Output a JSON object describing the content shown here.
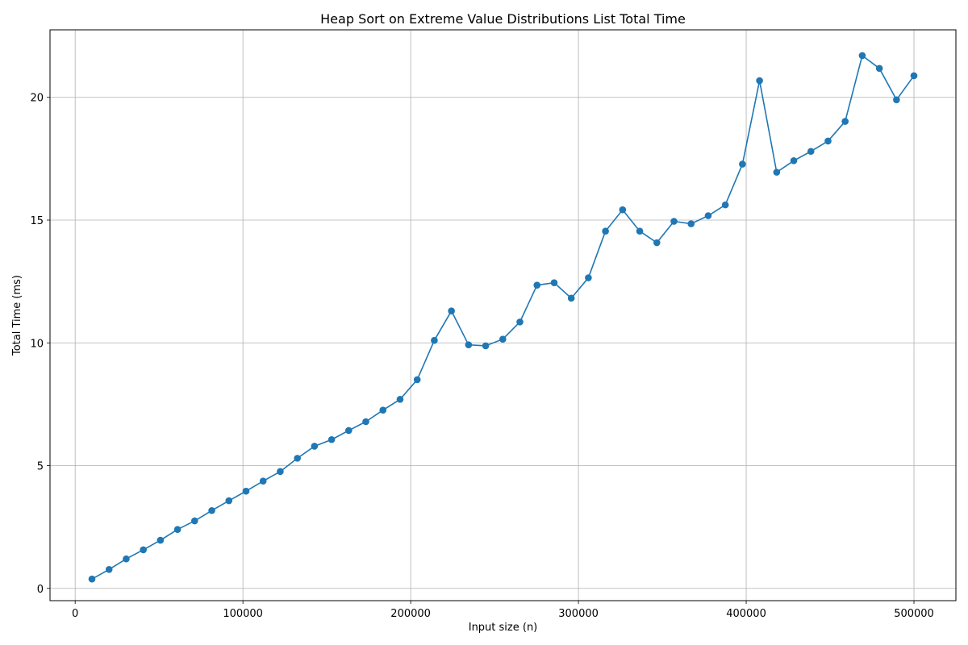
{
  "chart_data": {
    "type": "line",
    "title": "Heap Sort on Extreme Value Distributions List Total Time",
    "xlabel": "Input size (n)",
    "ylabel": "Total Time (ms)",
    "xlim": [
      -15000,
      525000
    ],
    "ylim": [
      -0.5,
      22.75
    ],
    "xticks": [
      0,
      100000,
      200000,
      300000,
      400000,
      500000
    ],
    "yticks": [
      0,
      5,
      10,
      15,
      20
    ],
    "grid": true,
    "line_color": "#1f77b4",
    "series": [
      {
        "x": [
          10000,
          20204,
          30408,
          40612,
          50816,
          61020,
          71224,
          81429,
          91633,
          101837,
          112041,
          122245,
          132449,
          142653,
          152857,
          163061,
          173265,
          183469,
          193673,
          203878,
          214082,
          224286,
          234490,
          244694,
          254898,
          265102,
          275306,
          285510,
          295714,
          305918,
          316122,
          326327,
          336531,
          346735,
          356939,
          367143,
          377347,
          387551,
          397755,
          407959,
          418163,
          428367,
          438571,
          448776,
          458980,
          469184,
          479388,
          489592,
          500000
        ],
        "values": [
          0.38,
          0.77,
          1.2,
          1.57,
          1.96,
          2.4,
          2.75,
          3.17,
          3.57,
          3.96,
          4.37,
          4.76,
          5.3,
          5.79,
          6.06,
          6.43,
          6.79,
          7.26,
          7.7,
          8.5,
          10.1,
          11.3,
          9.92,
          9.88,
          10.15,
          10.85,
          12.35,
          12.45,
          11.82,
          12.65,
          14.55,
          15.42,
          14.55,
          14.08,
          14.95,
          14.85,
          15.18,
          15.62,
          17.28,
          20.68,
          16.95,
          17.42,
          17.8,
          18.22,
          19.02,
          21.7,
          21.18,
          19.9,
          20.88
        ]
      }
    ]
  }
}
